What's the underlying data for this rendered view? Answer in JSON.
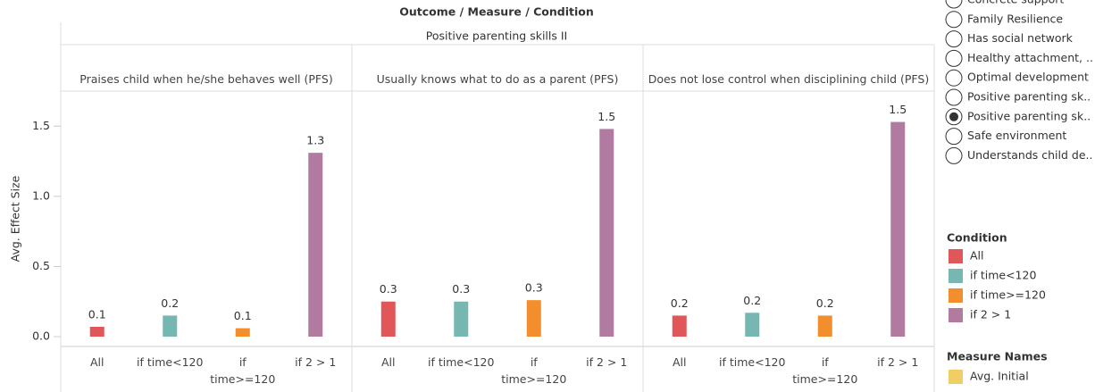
{
  "chart_data": {
    "type": "bar",
    "title": "Outcome / Measure / Condition",
    "subtitle": "Positive parenting skills II",
    "ylabel": "Avg. Effect Size",
    "ylim": [
      -0.07,
      1.75
    ],
    "yticks": [
      {
        "value": 0,
        "label": "0.0"
      },
      0.5,
      {
        "value": 1,
        "label": "1.0"
      },
      1.5
    ],
    "categories": [
      "All",
      "if time<120",
      "if time>=120",
      "if 2 > 1"
    ],
    "colors": [
      "#e15759",
      "#76b7b2",
      "#f28e2b",
      "#b07aa1"
    ],
    "panels": [
      {
        "title": "Praises child when he/she behaves well (PFS)",
        "values": [
          0.07,
          0.15,
          0.06,
          1.31
        ],
        "value_labels": [
          "0.1",
          "0.2",
          "0.1",
          "1.3"
        ]
      },
      {
        "title": "Usually knows what to do as a parent (PFS)",
        "values": [
          0.25,
          0.25,
          0.26,
          1.48
        ],
        "value_labels": [
          "0.3",
          "0.3",
          "0.3",
          "1.5"
        ]
      },
      {
        "title": "Does not lose control when disciplining child (PFS)",
        "values": [
          0.15,
          0.17,
          0.15,
          1.53
        ],
        "value_labels": [
          "0.2",
          "0.2",
          "0.2",
          "1.5"
        ]
      }
    ],
    "filter": {
      "options": [
        "Concrete support",
        "Family Resilience",
        "Has social network",
        "Healthy attachment, ..",
        "Optimal development",
        "Positive parenting sk..",
        "Positive parenting sk..",
        "Safe environment",
        "Understands child de.."
      ],
      "selected": 6
    },
    "condition_legend_title": "Condition",
    "measure_legend": {
      "title": "Measure Names",
      "items": [
        {
          "name": "Avg. Initial",
          "color": "#f1ce63"
        }
      ]
    }
  }
}
